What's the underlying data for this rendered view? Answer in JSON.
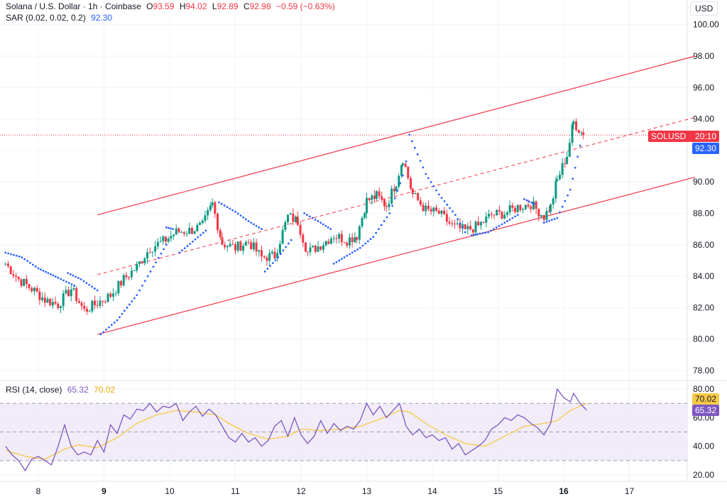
{
  "header": {
    "title": "Solana / U.S. Dollar · 1h · Coinbase",
    "o_label": "O",
    "o_val": "93.59",
    "h_label": "H",
    "h_val": "94.02",
    "l_label": "L",
    "l_val": "92.89",
    "c_label": "C",
    "c_val": "92.98",
    "change": "−0.59 (−0.63%)",
    "sar_label": "SAR (0.02, 0.02, 0.2)",
    "sar_val": "92.30",
    "currency": "USD"
  },
  "rsi_header": {
    "label": "RSI (14, close)",
    "val1": "65.32",
    "val2": "70.02"
  },
  "tags": {
    "symbol": "SOLUSD",
    "countdown": "20:10",
    "sar": "92.30",
    "rsi_ma": "70.02",
    "rsi": "65.32"
  },
  "colors": {
    "up": "#089981",
    "down": "#f23645",
    "sar": "#2962ff",
    "channel": "#f23645",
    "rsi": "#7e57c2",
    "rsi_ma": "#f7c948",
    "band": "#ede7f6"
  },
  "chart_data": [
    {
      "type": "candlestick",
      "title": "Solana / U.S. Dollar · 1h · Coinbase",
      "x_ticks": [
        "8",
        "9",
        "10",
        "11",
        "12",
        "13",
        "14",
        "15",
        "16",
        "17"
      ],
      "y_ticks": [
        78,
        80,
        82,
        84,
        86,
        88,
        90,
        92,
        94,
        96,
        98,
        100
      ],
      "ylim": [
        77.5,
        100.5
      ],
      "last_price": 92.98,
      "sar_last": 92.3,
      "keypoints": [
        [
          7.5,
          84.8
        ],
        [
          7.7,
          83.8
        ],
        [
          7.9,
          83.2
        ],
        [
          8.1,
          82.5
        ],
        [
          8.3,
          82.2
        ],
        [
          8.5,
          83.2
        ],
        [
          8.7,
          81.8
        ],
        [
          8.9,
          82.3
        ],
        [
          9.1,
          82.8
        ],
        [
          9.3,
          83.8
        ],
        [
          9.5,
          84.6
        ],
        [
          9.7,
          85.8
        ],
        [
          9.9,
          86.2
        ],
        [
          10.1,
          86.8
        ],
        [
          10.3,
          86.9
        ],
        [
          10.5,
          87.2
        ],
        [
          10.65,
          88.6
        ],
        [
          10.8,
          86.1
        ],
        [
          11.0,
          85.8
        ],
        [
          11.2,
          86.2
        ],
        [
          11.4,
          85.2
        ],
        [
          11.6,
          85.3
        ],
        [
          11.8,
          87.8
        ],
        [
          11.95,
          87.5
        ],
        [
          12.1,
          85.5
        ],
        [
          12.3,
          86.0
        ],
        [
          12.5,
          86.6
        ],
        [
          12.7,
          86.3
        ],
        [
          12.85,
          86.6
        ],
        [
          13.0,
          88.8
        ],
        [
          13.15,
          89.1
        ],
        [
          13.3,
          88.5
        ],
        [
          13.45,
          90.0
        ],
        [
          13.55,
          91.5
        ],
        [
          13.7,
          89.2
        ],
        [
          13.9,
          88.2
        ],
        [
          14.1,
          88.0
        ],
        [
          14.3,
          87.2
        ],
        [
          14.5,
          86.9
        ],
        [
          14.7,
          87.2
        ],
        [
          14.9,
          87.9
        ],
        [
          15.1,
          88.0
        ],
        [
          15.3,
          88.4
        ],
        [
          15.5,
          88.6
        ],
        [
          15.7,
          87.8
        ],
        [
          15.8,
          88.4
        ],
        [
          15.9,
          90.1
        ],
        [
          16.05,
          91.7
        ],
        [
          16.15,
          93.8
        ],
        [
          16.3,
          92.98
        ]
      ],
      "sar_segments": [
        [
          [
            7.5,
            85.5
          ],
          [
            7.75,
            85.2
          ],
          [
            8.0,
            84.5
          ],
          [
            8.3,
            83.9
          ],
          [
            8.55,
            83.4
          ]
        ],
        [
          [
            8.45,
            84.2
          ],
          [
            8.65,
            83.8
          ],
          [
            8.9,
            83.1
          ]
        ],
        [
          [
            8.95,
            80.3
          ],
          [
            9.2,
            81.2
          ],
          [
            9.5,
            82.8
          ],
          [
            9.75,
            84.6
          ],
          [
            9.95,
            86.0
          ]
        ],
        [
          [
            9.95,
            87.1
          ],
          [
            10.05,
            87.0
          ]
        ],
        [
          [
            10.15,
            85.5
          ],
          [
            10.35,
            86.2
          ],
          [
            10.55,
            86.9
          ]
        ],
        [
          [
            10.75,
            88.7
          ],
          [
            11.0,
            88.1
          ],
          [
            11.2,
            87.5
          ],
          [
            11.4,
            87.0
          ]
        ],
        [
          [
            11.45,
            84.3
          ],
          [
            11.65,
            85.2
          ],
          [
            11.85,
            86.3
          ]
        ],
        [
          [
            12.05,
            88.0
          ],
          [
            12.3,
            87.4
          ],
          [
            12.45,
            87.0
          ]
        ],
        [
          [
            12.5,
            84.8
          ],
          [
            12.7,
            85.3
          ],
          [
            12.9,
            85.8
          ],
          [
            13.1,
            86.5
          ],
          [
            13.35,
            88.0
          ],
          [
            13.55,
            90.4
          ],
          [
            13.6,
            91.3
          ]
        ],
        [
          [
            13.65,
            93.0
          ],
          [
            13.9,
            90.5
          ],
          [
            14.1,
            89.2
          ],
          [
            14.35,
            87.9
          ],
          [
            14.5,
            86.8
          ]
        ],
        [
          [
            14.6,
            86.6
          ],
          [
            14.85,
            86.8
          ],
          [
            15.1,
            87.4
          ],
          [
            15.3,
            87.9
          ]
        ],
        [
          [
            15.4,
            88.9
          ],
          [
            15.55,
            88.6
          ]
        ],
        [
          [
            15.7,
            87.4
          ],
          [
            15.9,
            87.7
          ],
          [
            16.1,
            89.5
          ],
          [
            16.25,
            92.3
          ]
        ]
      ],
      "channel": {
        "upper": [
          [
            8.9,
            87.9
          ],
          [
            18.0,
            98.0
          ]
        ],
        "lower": [
          [
            8.9,
            80.3
          ],
          [
            18.0,
            90.3
          ]
        ],
        "mid": [
          [
            8.9,
            84.1
          ],
          [
            18.0,
            94.1
          ]
        ]
      }
    },
    {
      "type": "line",
      "title": "RSI (14, close)",
      "y_ticks": [
        20,
        40,
        60,
        80
      ],
      "ylim": [
        15,
        85
      ],
      "bands": [
        30,
        50,
        70
      ],
      "series": [
        {
          "name": "RSI",
          "points": [
            [
              7.5,
              40
            ],
            [
              7.6,
              34
            ],
            [
              7.7,
              30
            ],
            [
              7.8,
              23
            ],
            [
              7.9,
              31
            ],
            [
              8.0,
              33
            ],
            [
              8.1,
              30
            ],
            [
              8.2,
              27
            ],
            [
              8.3,
              40
            ],
            [
              8.4,
              55
            ],
            [
              8.5,
              40
            ],
            [
              8.6,
              34
            ],
            [
              8.7,
              36
            ],
            [
              8.8,
              34
            ],
            [
              8.9,
              44
            ],
            [
              9.0,
              36
            ],
            [
              9.1,
              55
            ],
            [
              9.2,
              49
            ],
            [
              9.3,
              62
            ],
            [
              9.4,
              59
            ],
            [
              9.5,
              66
            ],
            [
              9.6,
              65
            ],
            [
              9.7,
              70
            ],
            [
              9.8,
              64
            ],
            [
              9.9,
              68
            ],
            [
              10.0,
              67
            ],
            [
              10.1,
              70
            ],
            [
              10.2,
              58
            ],
            [
              10.3,
              64
            ],
            [
              10.4,
              68
            ],
            [
              10.5,
              61
            ],
            [
              10.6,
              66
            ],
            [
              10.7,
              62
            ],
            [
              10.8,
              54
            ],
            [
              10.9,
              46
            ],
            [
              11.0,
              43
            ],
            [
              11.1,
              49
            ],
            [
              11.2,
              43
            ],
            [
              11.3,
              46
            ],
            [
              11.4,
              40
            ],
            [
              11.5,
              44
            ],
            [
              11.6,
              54
            ],
            [
              11.7,
              58
            ],
            [
              11.8,
              47
            ],
            [
              11.9,
              60
            ],
            [
              12.0,
              48
            ],
            [
              12.1,
              42
            ],
            [
              12.2,
              47
            ],
            [
              12.3,
              58
            ],
            [
              12.4,
              49
            ],
            [
              12.5,
              56
            ],
            [
              12.6,
              51
            ],
            [
              12.7,
              54
            ],
            [
              12.8,
              52
            ],
            [
              12.9,
              58
            ],
            [
              13.0,
              70
            ],
            [
              13.1,
              62
            ],
            [
              13.2,
              68
            ],
            [
              13.3,
              60
            ],
            [
              13.4,
              65
            ],
            [
              13.5,
              70
            ],
            [
              13.6,
              54
            ],
            [
              13.7,
              48
            ],
            [
              13.8,
              52
            ],
            [
              13.9,
              46
            ],
            [
              14.0,
              48
            ],
            [
              14.1,
              44
            ],
            [
              14.2,
              46
            ],
            [
              14.3,
              38
            ],
            [
              14.4,
              42
            ],
            [
              14.5,
              34
            ],
            [
              14.6,
              37
            ],
            [
              14.7,
              40
            ],
            [
              14.8,
              44
            ],
            [
              14.9,
              52
            ],
            [
              15.0,
              55
            ],
            [
              15.1,
              60
            ],
            [
              15.2,
              58
            ],
            [
              15.3,
              62
            ],
            [
              15.4,
              60
            ],
            [
              15.5,
              56
            ],
            [
              15.6,
              53
            ],
            [
              15.7,
              48
            ],
            [
              15.8,
              56
            ],
            [
              15.9,
              80
            ],
            [
              16.0,
              74
            ],
            [
              16.1,
              71
            ],
            [
              16.15,
              77
            ],
            [
              16.25,
              70
            ],
            [
              16.35,
              65.32
            ]
          ]
        },
        {
          "name": "RSI-based MA",
          "points": [
            [
              7.5,
              37
            ],
            [
              7.8,
              33
            ],
            [
              8.1,
              31
            ],
            [
              8.4,
              38
            ],
            [
              8.6,
              41
            ],
            [
              8.9,
              39
            ],
            [
              9.2,
              46
            ],
            [
              9.5,
              56
            ],
            [
              9.8,
              62
            ],
            [
              10.1,
              65
            ],
            [
              10.4,
              64
            ],
            [
              10.7,
              62
            ],
            [
              10.9,
              56
            ],
            [
              11.2,
              49
            ],
            [
              11.5,
              45
            ],
            [
              11.8,
              47
            ],
            [
              12.0,
              52
            ],
            [
              12.3,
              51
            ],
            [
              12.6,
              52
            ],
            [
              12.9,
              54
            ],
            [
              13.2,
              59
            ],
            [
              13.5,
              65
            ],
            [
              13.65,
              64
            ],
            [
              13.9,
              56
            ],
            [
              14.2,
              48
            ],
            [
              14.5,
              42
            ],
            [
              14.8,
              40
            ],
            [
              15.1,
              47
            ],
            [
              15.4,
              54
            ],
            [
              15.7,
              56
            ],
            [
              15.9,
              58
            ],
            [
              16.1,
              65
            ],
            [
              16.35,
              70.02
            ]
          ]
        }
      ]
    }
  ]
}
